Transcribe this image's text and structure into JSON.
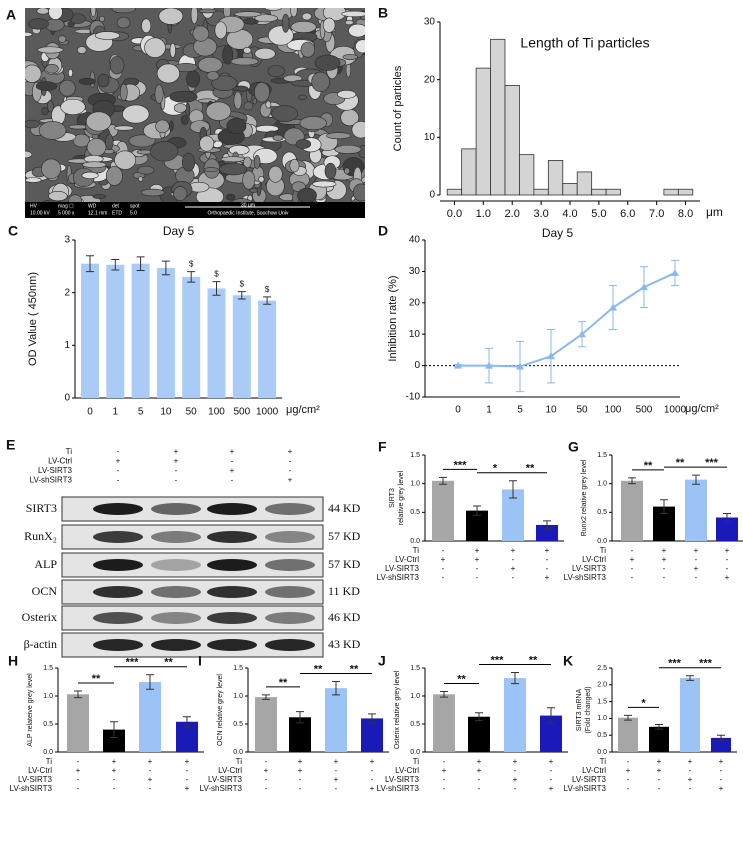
{
  "sem_image": {
    "label": "A",
    "info_headers": [
      "HV",
      "mag ☐",
      "WD",
      "det",
      "spot"
    ],
    "info_values": [
      "10.00 kV",
      "5 000 x",
      "12.1 mm",
      "ETD",
      "5.0"
    ],
    "scale": "30 μm",
    "institution": "Orthopaedic Institute, Soochow Univ"
  },
  "western_blot": {
    "label": "E",
    "proteins": [
      "SIRT3",
      "RunX₂",
      "ALP",
      "OCN",
      "Osterix",
      "β-actin"
    ],
    "sizes": [
      "44 KD",
      "57 KD",
      "57 KD",
      "11 KD",
      "46 KD",
      "43 KD"
    ]
  },
  "conditions": {
    "rows": [
      "Ti",
      "LV-Ctrl",
      "LV-SIRT3",
      "LV-shSIRT3"
    ],
    "signs": [
      [
        "-",
        "+",
        "+",
        "+"
      ],
      [
        "+",
        "+",
        "-",
        "-"
      ],
      [
        "-",
        "-",
        "+",
        "-"
      ],
      [
        "-",
        "-",
        "-",
        "+"
      ]
    ]
  },
  "chart_data": [
    {
      "type": "histogram",
      "label": "B",
      "title": "Length of Ti particles",
      "ylabel": "Count of particles",
      "x_unit": "μm",
      "bins": [
        -0.25,
        0.25,
        0.75,
        1.25,
        1.75,
        2.25,
        2.75,
        3.25,
        3.75,
        4.25,
        4.75,
        5.25,
        5.75,
        6.25,
        6.75,
        7.25,
        7.75,
        8.25
      ],
      "values": [
        1,
        8,
        22,
        27,
        19,
        7,
        1,
        6,
        2,
        4,
        1,
        1,
        0,
        0,
        0,
        1,
        1
      ],
      "color": "#d4d4d4",
      "xlim": [
        -0.5,
        8.5
      ],
      "xticks": [
        {
          "value": 0,
          "label": "0.0"
        },
        {
          "value": 1,
          "label": "1.0"
        },
        {
          "value": 2,
          "label": "2.0"
        },
        {
          "value": 3,
          "label": "3.0"
        },
        {
          "value": 4,
          "label": "4.0"
        },
        {
          "value": 5,
          "label": "5.0"
        },
        {
          "value": 6,
          "label": "6.0"
        },
        {
          "value": 7,
          "label": "7.0"
        },
        {
          "value": 8,
          "label": "8.0"
        }
      ],
      "ylim": [
        0,
        30
      ],
      "yticks": [
        0,
        10,
        20,
        30
      ]
    },
    {
      "type": "bar",
      "label": "C",
      "title": "Day 5",
      "ylabel": "OD Value ( 450nm)",
      "x_unit": "μg/cm²",
      "categories": [
        "0",
        "1",
        "5",
        "10",
        "50",
        "100",
        "500",
        "1000"
      ],
      "values": [
        2.55,
        2.53,
        2.55,
        2.47,
        2.3,
        2.08,
        1.95,
        1.85
      ],
      "errors": [
        0.15,
        0.1,
        0.13,
        0.13,
        0.1,
        0.13,
        0.07,
        0.07
      ],
      "annotations": [
        null,
        null,
        null,
        null,
        "$",
        "$",
        "$",
        "$"
      ],
      "color": "#a9cbf5",
      "ylim": [
        0,
        3
      ],
      "yticks": [
        0,
        1,
        2,
        3
      ]
    },
    {
      "type": "line",
      "label": "D",
      "title": "Day 5",
      "ylabel": "Inhibition rate (%)",
      "x_unit": "μg/cm²",
      "categories": [
        "0",
        "1",
        "5",
        "10",
        "50",
        "100",
        "500",
        "1000"
      ],
      "values": [
        0,
        0,
        -0.3,
        3,
        10,
        18.5,
        25,
        29.5
      ],
      "errors": [
        0.3,
        5.5,
        8,
        8.5,
        4,
        7,
        6.5,
        4
      ],
      "color": "#8ab8f0",
      "hline": 0,
      "ylim": [
        -10,
        40
      ],
      "yticks": [
        -10,
        0,
        10,
        20,
        30,
        40
      ]
    },
    {
      "type": "bar",
      "label": "F",
      "ylabel": [
        "SIRT3",
        "relative grey level"
      ],
      "categories": [
        null,
        null,
        null,
        null
      ],
      "values": [
        1.05,
        0.53,
        0.9,
        0.28
      ],
      "errors": [
        0.06,
        0.08,
        0.15,
        0.07
      ],
      "colors": [
        "#a6a6a6",
        "#000000",
        "#9cc3f5",
        "#1a1ab8"
      ],
      "significance": [
        "***",
        "*",
        "**"
      ],
      "ylim": [
        0,
        1.5
      ],
      "yticks": [
        {
          "value": 0,
          "label": "0.0"
        },
        {
          "value": 0.5,
          "label": "0.5"
        },
        {
          "value": 1,
          "label": "1.0"
        },
        {
          "value": 1.5,
          "label": "1.5"
        }
      ]
    },
    {
      "type": "bar",
      "label": "G",
      "ylabel": "Runx2 relative grey level",
      "categories": [
        null,
        null,
        null,
        null
      ],
      "values": [
        1.05,
        0.6,
        1.07,
        0.41
      ],
      "errors": [
        0.05,
        0.12,
        0.08,
        0.07
      ],
      "colors": [
        "#a6a6a6",
        "#000000",
        "#9cc3f5",
        "#1a1ab8"
      ],
      "significance": [
        "**",
        "**",
        "***"
      ],
      "ylim": [
        0,
        1.5
      ],
      "yticks": [
        {
          "value": 0,
          "label": "0.0"
        },
        {
          "value": 0.5,
          "label": "0.5"
        },
        {
          "value": 1,
          "label": "1.0"
        },
        {
          "value": 1.5,
          "label": "1.5"
        }
      ]
    },
    {
      "type": "bar",
      "label": "H",
      "ylabel": "ALP relateive grey level",
      "categories": [
        null,
        null,
        null,
        null
      ],
      "values": [
        1.03,
        0.4,
        1.25,
        0.54
      ],
      "errors": [
        0.06,
        0.14,
        0.13,
        0.09
      ],
      "colors": [
        "#a6a6a6",
        "#000000",
        "#9cc3f5",
        "#1a1ab8"
      ],
      "significance": [
        "**",
        "***",
        "**"
      ],
      "ylim": [
        0,
        1.5
      ],
      "yticks": [
        {
          "value": 0,
          "label": "0.0"
        },
        {
          "value": 0.5,
          "label": "0.5"
        },
        {
          "value": 1,
          "label": "1.0"
        },
        {
          "value": 1.5,
          "label": "1.5"
        }
      ]
    },
    {
      "type": "bar",
      "label": "I",
      "ylabel": "OCN relative grey level",
      "categories": [
        null,
        null,
        null,
        null
      ],
      "values": [
        0.98,
        0.62,
        1.14,
        0.6
      ],
      "errors": [
        0.04,
        0.1,
        0.12,
        0.08
      ],
      "colors": [
        "#a6a6a6",
        "#000000",
        "#9cc3f5",
        "#1a1ab8"
      ],
      "significance": [
        "**",
        "**",
        "**"
      ],
      "ylim": [
        0,
        1.5
      ],
      "yticks": [
        {
          "value": 0,
          "label": "0.0"
        },
        {
          "value": 0.5,
          "label": "0.5"
        },
        {
          "value": 1,
          "label": "1.0"
        },
        {
          "value": 1.5,
          "label": "1.5"
        }
      ]
    },
    {
      "type": "bar",
      "label": "J",
      "ylabel": "Osterix relative grey level",
      "categories": [
        null,
        null,
        null,
        null
      ],
      "values": [
        1.03,
        0.63,
        1.32,
        0.65
      ],
      "errors": [
        0.05,
        0.07,
        0.1,
        0.14
      ],
      "colors": [
        "#a6a6a6",
        "#000000",
        "#9cc3f5",
        "#1a1ab8"
      ],
      "significance": [
        "**",
        "***",
        "**"
      ],
      "ylim": [
        0,
        1.5
      ],
      "yticks": [
        {
          "value": 0,
          "label": "0.0"
        },
        {
          "value": 0.5,
          "label": "0.5"
        },
        {
          "value": 1,
          "label": "1.0"
        },
        {
          "value": 1.5,
          "label": "1.5"
        }
      ]
    },
    {
      "type": "bar",
      "label": "K",
      "ylabel": [
        "SIRT3 mRNA",
        "(Fold changed)"
      ],
      "categories": [
        null,
        null,
        null,
        null
      ],
      "values": [
        1.02,
        0.75,
        2.2,
        0.42
      ],
      "errors": [
        0.07,
        0.07,
        0.07,
        0.08
      ],
      "colors": [
        "#a6a6a6",
        "#000000",
        "#9cc3f5",
        "#1a1ab8"
      ],
      "significance": [
        "*",
        "***",
        "***"
      ],
      "ylim": [
        0,
        2.5
      ],
      "yticks": [
        {
          "value": 0,
          "label": "0.0"
        },
        {
          "value": 0.5,
          "label": "0.5"
        },
        {
          "value": 1,
          "label": "1.0"
        },
        {
          "value": 1.5,
          "label": "1.5"
        },
        {
          "value": 2,
          "label": "2.0"
        },
        {
          "value": 2.5,
          "label": "2.5"
        }
      ]
    }
  ]
}
